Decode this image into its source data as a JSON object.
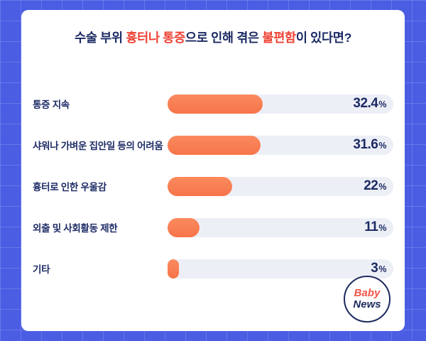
{
  "title": {
    "full": "수술 부위 흉터나 통증으로 인해 겪은 불편함이 있다면?",
    "parts": [
      {
        "text": "수술 부위 ",
        "color": "navy"
      },
      {
        "text": "흉터나 통증",
        "color": "red"
      },
      {
        "text": "으로 인해 겪은 ",
        "color": "navy"
      },
      {
        "text": "불편함",
        "color": "red"
      },
      {
        "text": "이 있다면?",
        "color": "navy"
      }
    ]
  },
  "chart_data": {
    "type": "bar",
    "orientation": "horizontal",
    "title": "수술 부위 흉터나 통증으로 인해 겪은 불편함이 있다면?",
    "categories": [
      "통증 지속",
      "샤워나 가벼운 집안일 등의 어려움",
      "흉터로 인한 우울감",
      "외출 및 사회활동 제한",
      "기타"
    ],
    "values": [
      32.4,
      31.6,
      22,
      11,
      3
    ],
    "value_labels": [
      "32.4",
      "31.6",
      "22",
      "11",
      "3"
    ],
    "unit": "%",
    "xlim": [
      0,
      45
    ],
    "grid": false,
    "legend": "none",
    "bar_color": "#f87c4e",
    "track_color": "#edeff7"
  },
  "logo": {
    "line1": "Baby",
    "line2": "News"
  },
  "colors": {
    "background_blue": "#4a5de3",
    "card_white": "#ffffff",
    "title_navy": "#1b2a63",
    "accent_red": "#ee4133",
    "bar_orange": "#f87c4e",
    "bar_track": "#edeff7"
  }
}
